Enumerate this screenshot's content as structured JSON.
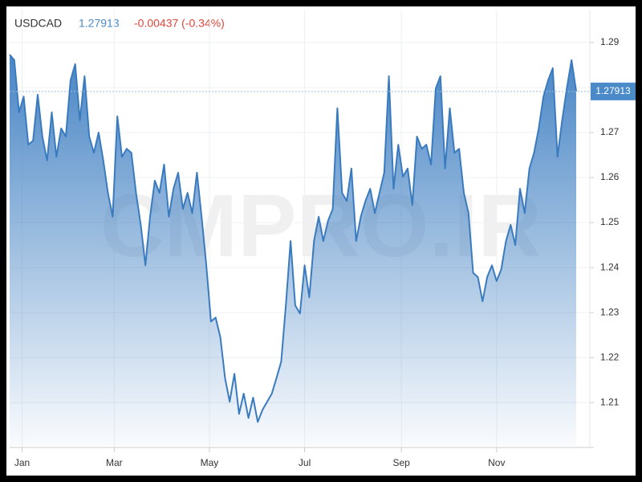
{
  "header": {
    "symbol": "USDCAD",
    "price": "1.27913",
    "change": "-0.00437 (-0.34%)"
  },
  "chart_data": {
    "type": "area",
    "watermark": "CMPRO.IR",
    "price_tag": "1.27913",
    "color": "#3a7bbf",
    "x": [
      -7,
      -4,
      -1,
      2,
      5,
      8,
      11,
      14,
      17,
      20,
      23,
      26,
      29,
      32,
      35,
      38,
      41,
      44,
      47,
      50,
      53,
      56,
      59,
      62,
      65,
      68,
      71,
      74,
      77,
      80,
      83,
      86,
      89,
      92,
      95,
      98,
      101,
      104,
      107,
      110,
      113,
      116,
      119,
      122,
      125,
      128,
      131,
      134,
      137,
      140,
      143,
      146,
      149,
      152,
      155,
      158,
      161,
      164,
      167,
      170,
      173,
      176,
      179,
      182,
      185,
      188,
      191,
      194,
      197,
      200,
      203,
      206,
      209,
      212,
      215,
      218,
      221,
      224,
      227,
      230,
      233,
      236,
      239,
      242,
      245,
      248,
      251,
      254,
      257,
      260,
      263,
      266,
      269,
      272,
      275,
      278,
      281,
      284,
      287,
      290,
      293,
      296,
      299,
      302,
      305,
      308,
      311,
      314,
      317,
      320,
      323,
      326,
      329,
      332,
      335,
      338,
      341,
      344,
      347,
      350,
      353,
      356
    ],
    "values": [
      1.2873,
      1.2861,
      1.2745,
      1.278,
      1.2673,
      1.2682,
      1.2784,
      1.2691,
      1.2638,
      1.2745,
      1.2646,
      1.2709,
      1.2691,
      1.2816,
      1.2852,
      1.2727,
      1.2825,
      1.2691,
      1.2655,
      1.27,
      1.2638,
      1.2566,
      1.2513,
      1.2736,
      1.2646,
      1.2664,
      1.2655,
      1.2566,
      1.2495,
      1.2405,
      1.2513,
      1.2593,
      1.2566,
      1.2629,
      1.2513,
      1.2575,
      1.2611,
      1.253,
      1.2566,
      1.2521,
      1.2611,
      1.2513,
      1.2405,
      1.228,
      1.2289,
      1.2245,
      1.2155,
      1.2102,
      1.2164,
      1.2075,
      1.212,
      1.2066,
      1.2111,
      1.2057,
      1.2084,
      1.2102,
      1.212,
      1.2155,
      1.2191,
      1.2316,
      1.2459,
      1.2316,
      1.2298,
      1.2405,
      1.2334,
      1.2459,
      1.2513,
      1.2459,
      1.2504,
      1.253,
      1.2754,
      1.2566,
      1.2548,
      1.262,
      1.2459,
      1.2513,
      1.2548,
      1.2575,
      1.2521,
      1.2566,
      1.2611,
      1.2825,
      1.2575,
      1.2673,
      1.2602,
      1.262,
      1.2539,
      1.2691,
      1.2664,
      1.2673,
      1.2629,
      1.2798,
      1.2825,
      1.262,
      1.2754,
      1.2655,
      1.2664,
      1.2566,
      1.2521,
      1.2388,
      1.2379,
      1.2325,
      1.2379,
      1.2405,
      1.237,
      1.2396,
      1.2459,
      1.2495,
      1.245,
      1.2575,
      1.2521,
      1.262,
      1.2655,
      1.2709,
      1.278,
      1.2816,
      1.2843,
      1.2646,
      1.2727,
      1.2798,
      1.2861,
      1.27913
    ],
    "xlim": [
      -7,
      356
    ],
    "xticks": [
      {
        "value": 1,
        "label": "Jan"
      },
      {
        "value": 60,
        "label": "Mar"
      },
      {
        "value": 121,
        "label": "May"
      },
      {
        "value": 182,
        "label": "Jul"
      },
      {
        "value": 244,
        "label": "Sep"
      },
      {
        "value": 305,
        "label": "Nov"
      }
    ],
    "ylim": [
      1.2004,
      1.2973
    ],
    "yticks": [
      1.21,
      1.22,
      1.23,
      1.24,
      1.25,
      1.26,
      1.27,
      1.28,
      1.29
    ],
    "grid": true
  }
}
